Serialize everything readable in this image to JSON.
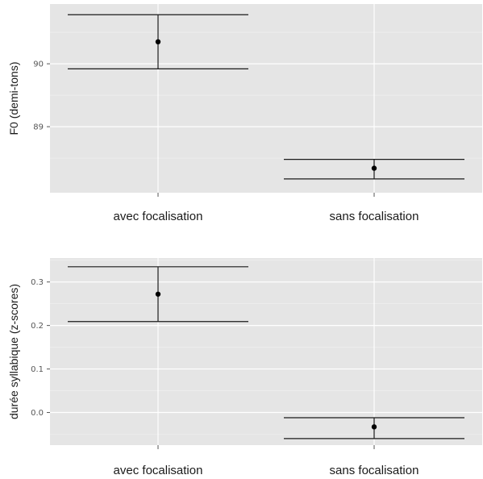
{
  "chart_data": [
    {
      "type": "errorbar",
      "ylabel": "F0 (demi-tons)",
      "xlabel": "",
      "categories": [
        "avec focalisation",
        "sans focalisation"
      ],
      "values": [
        90.35,
        88.34
      ],
      "ci_low": [
        89.92,
        88.17
      ],
      "ci_high": [
        90.78,
        88.48
      ],
      "yticks": [
        "89",
        "90"
      ],
      "ylim": [
        87.95,
        90.95
      ],
      "grid": true
    },
    {
      "type": "errorbar",
      "ylabel": "durée syllabique (z-scores)",
      "xlabel": "",
      "categories": [
        "avec focalisation",
        "sans focalisation"
      ],
      "values": [
        0.272,
        -0.033
      ],
      "ci_low": [
        0.209,
        -0.06
      ],
      "ci_high": [
        0.335,
        -0.012
      ],
      "yticks": [
        "0.0",
        "0.1",
        "0.2",
        "0.3"
      ],
      "ylim": [
        -0.075,
        0.355
      ],
      "grid": true
    }
  ]
}
